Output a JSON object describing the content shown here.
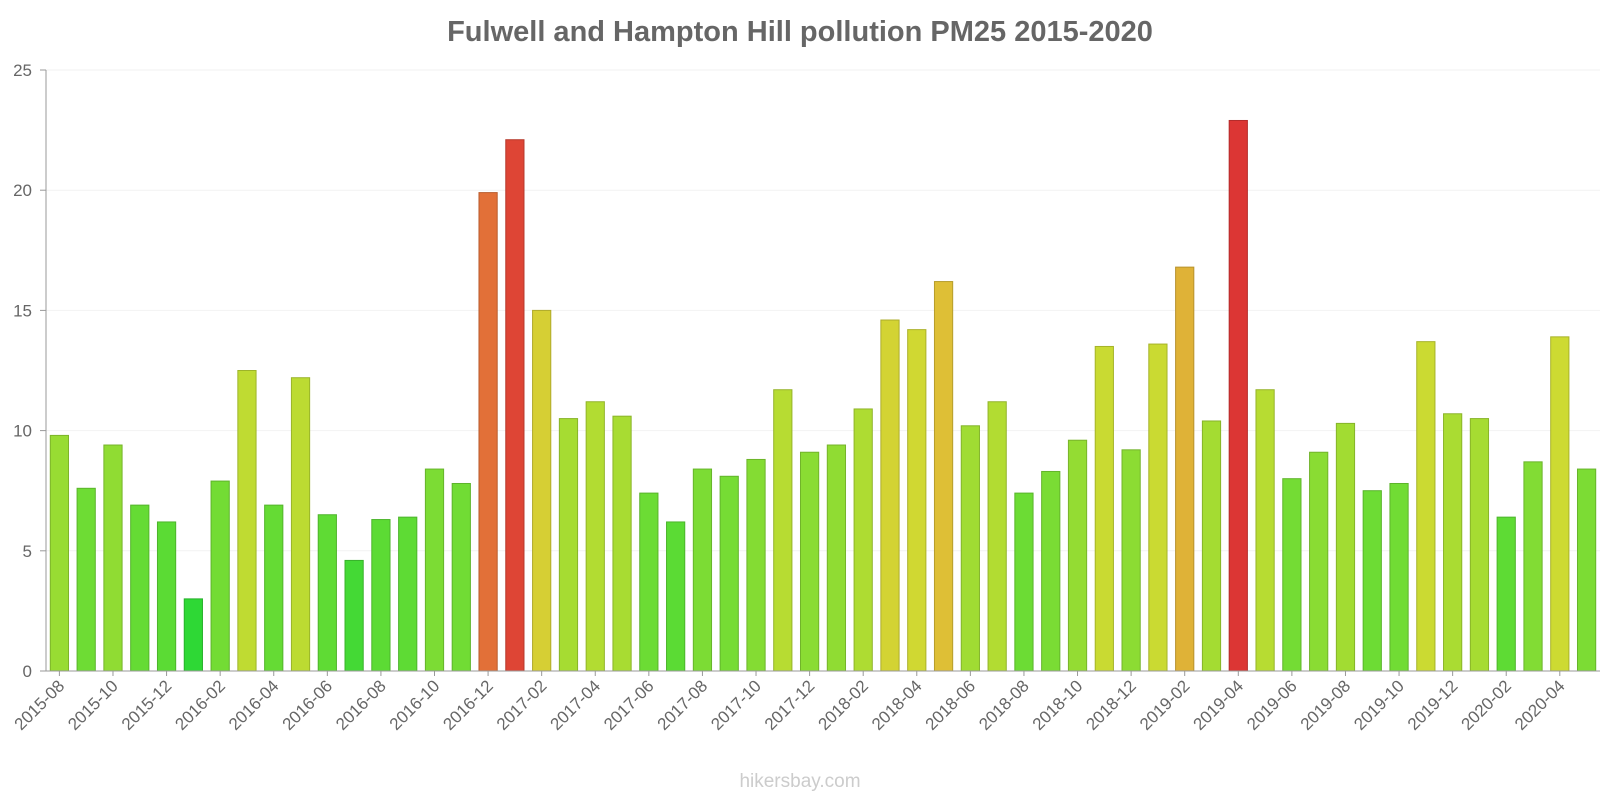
{
  "chart_data": {
    "type": "bar",
    "title": "Fulwell and Hampton Hill pollution PM25 2015-2020",
    "xlabel": "",
    "ylabel": "",
    "ylim": [
      0,
      25
    ],
    "yticks": [
      0,
      5,
      10,
      15,
      20,
      25
    ],
    "grid": true,
    "categories": [
      "2015-08",
      "2015-09",
      "2015-10",
      "2015-11",
      "2015-12",
      "2016-01",
      "2016-02",
      "2016-03",
      "2016-04",
      "2016-05",
      "2016-06",
      "2016-07",
      "2016-08",
      "2016-09",
      "2016-10",
      "2016-11",
      "2016-12",
      "2017-01",
      "2017-02",
      "2017-03",
      "2017-04",
      "2017-05",
      "2017-06",
      "2017-07",
      "2017-08",
      "2017-09",
      "2017-10",
      "2017-11",
      "2017-12",
      "2018-01",
      "2018-02",
      "2018-03",
      "2018-04",
      "2018-05",
      "2018-06",
      "2018-07",
      "2018-08",
      "2018-09",
      "2018-10",
      "2018-11",
      "2018-12",
      "2019-01",
      "2019-02",
      "2019-03",
      "2019-04",
      "2019-05",
      "2019-06",
      "2019-07",
      "2019-08",
      "2019-09",
      "2019-10",
      "2019-11",
      "2019-12",
      "2020-01",
      "2020-02",
      "2020-03",
      "2020-04",
      "2020-05"
    ],
    "x_tick_labels": [
      "2015-08",
      "2015-10",
      "2015-12",
      "2016-02",
      "2016-04",
      "2016-06",
      "2016-08",
      "2016-10",
      "2016-12",
      "2017-02",
      "2017-04",
      "2017-06",
      "2017-08",
      "2017-10",
      "2017-12",
      "2018-02",
      "2018-04",
      "2018-06",
      "2018-08",
      "2018-10",
      "2018-12",
      "2019-02",
      "2019-04",
      "2019-06",
      "2019-08",
      "2019-10",
      "2019-12",
      "2020-02",
      "2020-04"
    ],
    "values": [
      9.8,
      7.6,
      9.4,
      6.9,
      6.2,
      3.0,
      7.9,
      12.5,
      6.9,
      12.2,
      6.5,
      4.6,
      6.3,
      6.4,
      8.4,
      7.8,
      19.9,
      22.1,
      15.0,
      10.5,
      11.2,
      10.6,
      7.4,
      6.2,
      8.4,
      8.1,
      8.8,
      11.7,
      9.1,
      9.4,
      10.9,
      14.6,
      14.2,
      16.2,
      10.2,
      11.2,
      7.4,
      8.3,
      9.6,
      13.5,
      9.2,
      13.6,
      16.8,
      10.4,
      22.9,
      11.7,
      8.0,
      9.1,
      10.3,
      7.5,
      7.8,
      13.7,
      10.7,
      10.5,
      6.4,
      8.7,
      13.9,
      8.4
    ]
  },
  "watermark": "hikersbay.com"
}
